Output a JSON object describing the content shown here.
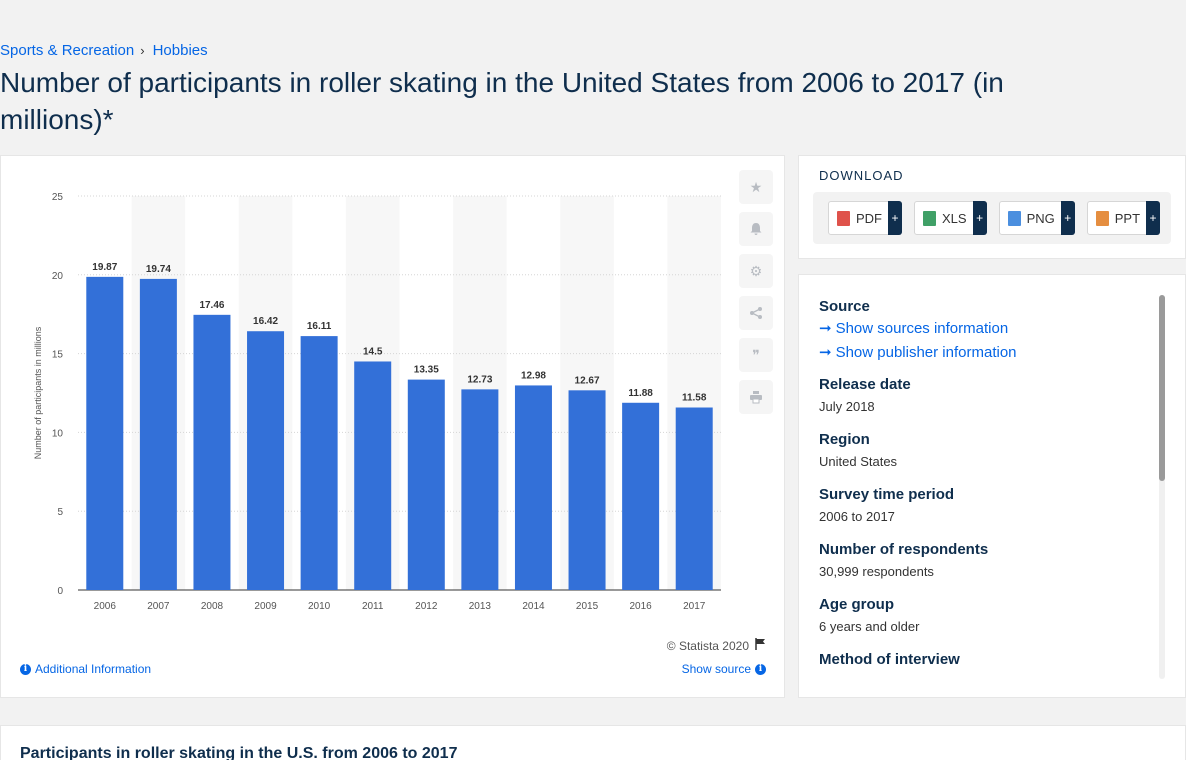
{
  "breadcrumb": {
    "items": [
      "Sports & Recreation",
      "Hobbies"
    ],
    "separator": "›"
  },
  "page_title": "Number of participants in roller skating in the United States from 2006 to 2017 (in millions)*",
  "chart_data": {
    "type": "bar",
    "categories": [
      "2006",
      "2007",
      "2008",
      "2009",
      "2010",
      "2011",
      "2012",
      "2013",
      "2014",
      "2015",
      "2016",
      "2017"
    ],
    "values": [
      19.87,
      19.74,
      17.46,
      16.42,
      16.11,
      14.5,
      13.35,
      12.73,
      12.98,
      12.67,
      11.88,
      11.58
    ],
    "value_labels": [
      "19.87",
      "19.74",
      "17.46",
      "16.42",
      "16.11",
      "14.5",
      "13.35",
      "12.73",
      "12.98",
      "12.67",
      "11.88",
      "11.58"
    ],
    "ylabel": "Number of participants in millions",
    "xlabel": "",
    "ylim": [
      0,
      25
    ],
    "yticks": [
      0,
      5,
      10,
      15,
      20,
      25
    ],
    "grid": true,
    "bar_color": "#3370d8"
  },
  "chart_panel": {
    "copyright": "© Statista 2020",
    "additional_info": "Additional Information",
    "show_source": "Show source"
  },
  "download": {
    "title": "DOWNLOAD",
    "buttons": [
      {
        "label": "PDF",
        "plus": "+",
        "color": "#d9342b"
      },
      {
        "label": "XLS",
        "plus": "+",
        "color": "#1f8f4c"
      },
      {
        "label": "PNG",
        "plus": "+",
        "color": "#2b7bd9"
      },
      {
        "label": "PPT",
        "plus": "+",
        "color": "#e07a1f"
      }
    ]
  },
  "info": {
    "source_head": "Source",
    "show_sources": "Show sources information",
    "show_publisher": "Show publisher information",
    "fields": [
      {
        "head": "Release date",
        "value": "July 2018"
      },
      {
        "head": "Region",
        "value": "United States"
      },
      {
        "head": "Survey time period",
        "value": "2006 to 2017"
      },
      {
        "head": "Number of respondents",
        "value": "30,999 respondents"
      },
      {
        "head": "Age group",
        "value": "6 years and older"
      },
      {
        "head": "Method of interview",
        "value": ""
      }
    ]
  },
  "bottom": {
    "title": "Participants in roller skating in the U.S. from 2006 to 2017"
  },
  "colors": {
    "accent": "#0666e5",
    "navy": "#0f2e4d",
    "bar": "#3370d8"
  }
}
